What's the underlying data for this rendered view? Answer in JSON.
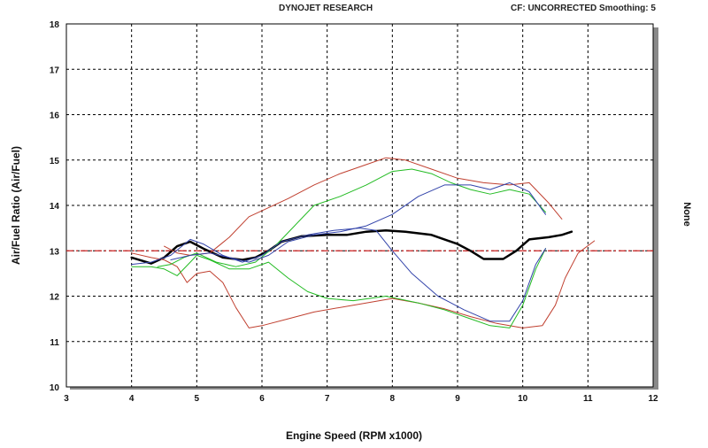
{
  "header": {
    "brand": "DYNOJET RESEARCH",
    "correction": "CF: UNCORRECTED  Smoothing: 5"
  },
  "chart_data": {
    "type": "line",
    "xlabel": "Engine Speed (RPM x1000)",
    "ylabel": "Air/Fuel Ratio (Air/Fuel)",
    "right_label": "None",
    "xlim": [
      3,
      12
    ],
    "ylim": [
      10,
      18
    ],
    "xticks": [
      3,
      4,
      5,
      6,
      7,
      8,
      9,
      10,
      11,
      12
    ],
    "yticks": [
      10,
      11,
      12,
      13,
      14,
      15,
      16,
      17,
      18
    ],
    "grid": true,
    "reference_line": {
      "y": 13,
      "color": "#cc2222"
    },
    "series": [
      {
        "color": "#000000",
        "width": 2.5,
        "points": [
          [
            4.0,
            12.85
          ],
          [
            4.3,
            12.72
          ],
          [
            4.5,
            12.85
          ],
          [
            4.7,
            13.1
          ],
          [
            4.9,
            13.2
          ],
          [
            5.1,
            13.05
          ],
          [
            5.4,
            12.85
          ],
          [
            5.7,
            12.8
          ],
          [
            5.9,
            12.85
          ],
          [
            6.1,
            13.0
          ],
          [
            6.3,
            13.2
          ],
          [
            6.6,
            13.32
          ],
          [
            7.0,
            13.35
          ],
          [
            7.3,
            13.35
          ],
          [
            7.6,
            13.42
          ],
          [
            7.9,
            13.45
          ],
          [
            8.2,
            13.42
          ],
          [
            8.6,
            13.35
          ],
          [
            9.0,
            13.15
          ],
          [
            9.2,
            13.0
          ],
          [
            9.4,
            12.82
          ],
          [
            9.7,
            12.82
          ],
          [
            9.9,
            13.0
          ],
          [
            10.1,
            13.25
          ],
          [
            10.4,
            13.3
          ],
          [
            10.6,
            13.35
          ],
          [
            10.75,
            13.42
          ]
        ]
      },
      {
        "color": "#c04030",
        "width": 1,
        "points": [
          [
            4.0,
            12.95
          ],
          [
            4.3,
            12.85
          ],
          [
            4.5,
            12.8
          ],
          [
            4.7,
            12.65
          ],
          [
            4.85,
            12.3
          ],
          [
            5.0,
            12.5
          ],
          [
            5.2,
            12.55
          ],
          [
            5.4,
            12.3
          ],
          [
            5.6,
            11.75
          ],
          [
            5.8,
            11.3
          ],
          [
            6.0,
            11.35
          ],
          [
            6.4,
            11.5
          ],
          [
            6.8,
            11.65
          ],
          [
            7.4,
            11.8
          ],
          [
            8.0,
            11.95
          ],
          [
            8.4,
            11.85
          ],
          [
            8.8,
            11.72
          ],
          [
            9.2,
            11.55
          ],
          [
            9.6,
            11.4
          ],
          [
            10.0,
            11.3
          ],
          [
            10.3,
            11.35
          ],
          [
            10.5,
            11.8
          ],
          [
            10.65,
            12.4
          ],
          [
            10.85,
            12.95
          ],
          [
            11.1,
            13.22
          ]
        ]
      },
      {
        "color": "#c04030",
        "width": 1,
        "points": [
          [
            4.5,
            13.1
          ],
          [
            4.7,
            12.95
          ],
          [
            4.9,
            12.9
          ],
          [
            5.2,
            12.95
          ],
          [
            5.5,
            13.3
          ],
          [
            5.8,
            13.75
          ],
          [
            6.1,
            13.95
          ],
          [
            6.4,
            14.15
          ],
          [
            6.8,
            14.45
          ],
          [
            7.2,
            14.7
          ],
          [
            7.6,
            14.9
          ],
          [
            7.9,
            15.05
          ],
          [
            8.2,
            15.0
          ],
          [
            8.6,
            14.8
          ],
          [
            9.0,
            14.6
          ],
          [
            9.4,
            14.5
          ],
          [
            9.8,
            14.45
          ],
          [
            10.1,
            14.5
          ],
          [
            10.4,
            14.05
          ],
          [
            10.6,
            13.7
          ]
        ]
      },
      {
        "color": "#22bb22",
        "width": 1,
        "points": [
          [
            4.0,
            12.65
          ],
          [
            4.3,
            12.65
          ],
          [
            4.5,
            12.6
          ],
          [
            4.7,
            12.45
          ],
          [
            4.9,
            12.75
          ],
          [
            5.0,
            12.9
          ],
          [
            5.2,
            12.8
          ],
          [
            5.5,
            12.6
          ],
          [
            5.8,
            12.6
          ],
          [
            6.1,
            12.75
          ],
          [
            6.4,
            12.4
          ],
          [
            6.7,
            12.1
          ],
          [
            7.0,
            11.95
          ],
          [
            7.4,
            11.9
          ],
          [
            7.9,
            12.0
          ],
          [
            8.4,
            11.85
          ],
          [
            8.8,
            11.7
          ],
          [
            9.2,
            11.5
          ],
          [
            9.5,
            11.35
          ],
          [
            9.8,
            11.3
          ],
          [
            10.0,
            11.8
          ],
          [
            10.2,
            12.6
          ],
          [
            10.35,
            13.05
          ]
        ]
      },
      {
        "color": "#22bb22",
        "width": 1,
        "points": [
          [
            4.4,
            12.65
          ],
          [
            4.6,
            12.7
          ],
          [
            4.8,
            12.85
          ],
          [
            5.0,
            12.95
          ],
          [
            5.3,
            12.75
          ],
          [
            5.6,
            12.65
          ],
          [
            5.9,
            12.75
          ],
          [
            6.2,
            13.1
          ],
          [
            6.5,
            13.55
          ],
          [
            6.8,
            14.0
          ],
          [
            7.2,
            14.2
          ],
          [
            7.6,
            14.45
          ],
          [
            8.0,
            14.75
          ],
          [
            8.3,
            14.8
          ],
          [
            8.6,
            14.7
          ],
          [
            8.9,
            14.5
          ],
          [
            9.2,
            14.35
          ],
          [
            9.5,
            14.25
          ],
          [
            9.8,
            14.35
          ],
          [
            10.1,
            14.25
          ],
          [
            10.35,
            13.85
          ]
        ]
      },
      {
        "color": "#3344aa",
        "width": 1,
        "points": [
          [
            4.0,
            12.7
          ],
          [
            4.3,
            12.75
          ],
          [
            4.6,
            12.9
          ],
          [
            4.9,
            13.25
          ],
          [
            5.1,
            13.15
          ],
          [
            5.4,
            12.9
          ],
          [
            5.7,
            12.75
          ],
          [
            6.0,
            12.9
          ],
          [
            6.3,
            13.2
          ],
          [
            6.7,
            13.35
          ],
          [
            7.1,
            13.45
          ],
          [
            7.5,
            13.5
          ],
          [
            7.75,
            13.45
          ],
          [
            8.0,
            13.0
          ],
          [
            8.3,
            12.5
          ],
          [
            8.7,
            12.0
          ],
          [
            9.1,
            11.7
          ],
          [
            9.5,
            11.45
          ],
          [
            9.8,
            11.45
          ],
          [
            10.0,
            11.9
          ],
          [
            10.2,
            12.7
          ],
          [
            10.35,
            13.05
          ]
        ]
      },
      {
        "color": "#3344aa",
        "width": 1,
        "points": [
          [
            4.6,
            12.8
          ],
          [
            4.9,
            12.9
          ],
          [
            5.2,
            12.95
          ],
          [
            5.5,
            12.85
          ],
          [
            5.8,
            12.75
          ],
          [
            6.1,
            12.9
          ],
          [
            6.4,
            13.2
          ],
          [
            6.8,
            13.35
          ],
          [
            7.2,
            13.42
          ],
          [
            7.6,
            13.55
          ],
          [
            8.0,
            13.8
          ],
          [
            8.4,
            14.2
          ],
          [
            8.8,
            14.45
          ],
          [
            9.2,
            14.45
          ],
          [
            9.5,
            14.35
          ],
          [
            9.8,
            14.5
          ],
          [
            10.1,
            14.3
          ],
          [
            10.35,
            13.8
          ]
        ]
      }
    ]
  }
}
